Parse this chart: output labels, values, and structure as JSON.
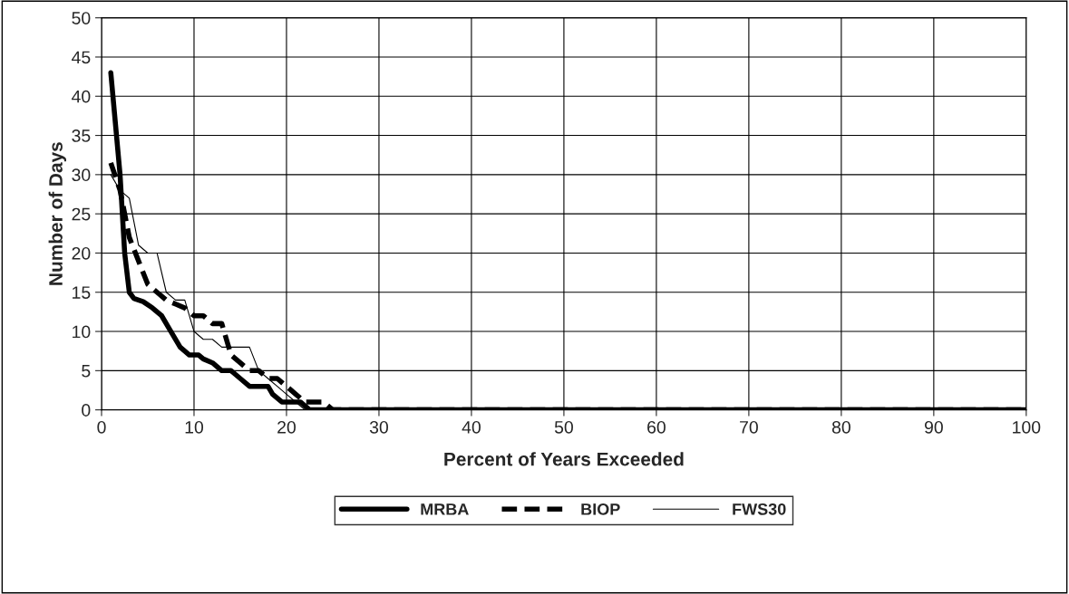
{
  "chart_data": {
    "type": "line",
    "xlabel": "Percent of Years Exceeded",
    "ylabel": "Number of Days",
    "xlim": [
      0,
      100
    ],
    "xticks": [
      0,
      10,
      20,
      30,
      40,
      50,
      60,
      70,
      80,
      90,
      100
    ],
    "ylim": [
      0,
      50
    ],
    "yticks": [
      0,
      5,
      10,
      15,
      20,
      25,
      30,
      35,
      40,
      45,
      50
    ],
    "grid": true,
    "legend": "bottom",
    "series": [
      {
        "name": "MRBA",
        "color": "#000000",
        "line_style": "solid",
        "x": [
          1,
          2,
          2.5,
          3,
          3.5,
          4.5,
          5.5,
          6.5,
          7.5,
          8.5,
          9.5,
          10.5,
          11,
          12,
          13,
          14,
          15,
          16,
          17,
          18,
          18.5,
          19.5,
          20.5,
          21.5,
          22.5,
          100
        ],
        "values": [
          43,
          30,
          20,
          15,
          14.2,
          13.8,
          13,
          12,
          10,
          8,
          7,
          7,
          6.5,
          6,
          5,
          5,
          4,
          3,
          3,
          3,
          2,
          1,
          1,
          1,
          0,
          0
        ]
      },
      {
        "name": "BIOP",
        "color": "#000000",
        "line_style": "dashed",
        "x": [
          1,
          2,
          3,
          4,
          5,
          6,
          7,
          8,
          9,
          10,
          11,
          12,
          13,
          14,
          15,
          16,
          17,
          18,
          19,
          20,
          21,
          22,
          23,
          24,
          25,
          100
        ],
        "values": [
          31.5,
          28,
          22,
          19,
          16,
          15,
          14,
          13.5,
          13,
          12,
          12,
          11,
          11,
          7,
          6,
          5,
          5,
          4,
          4,
          3,
          2,
          1,
          1,
          1,
          0,
          0
        ]
      },
      {
        "name": "FWS30",
        "color": "#000000",
        "line_style": "solid",
        "x": [
          1,
          2,
          3,
          4,
          5,
          6,
          7,
          8,
          9,
          10,
          11,
          12,
          13,
          14,
          15,
          16,
          17,
          18,
          19,
          20,
          21,
          22,
          100
        ],
        "values": [
          30,
          28,
          27,
          21,
          20,
          20,
          15,
          14,
          14,
          10,
          9,
          9,
          8,
          8,
          8,
          8,
          5,
          4,
          3,
          2,
          1,
          0,
          0
        ]
      }
    ]
  }
}
